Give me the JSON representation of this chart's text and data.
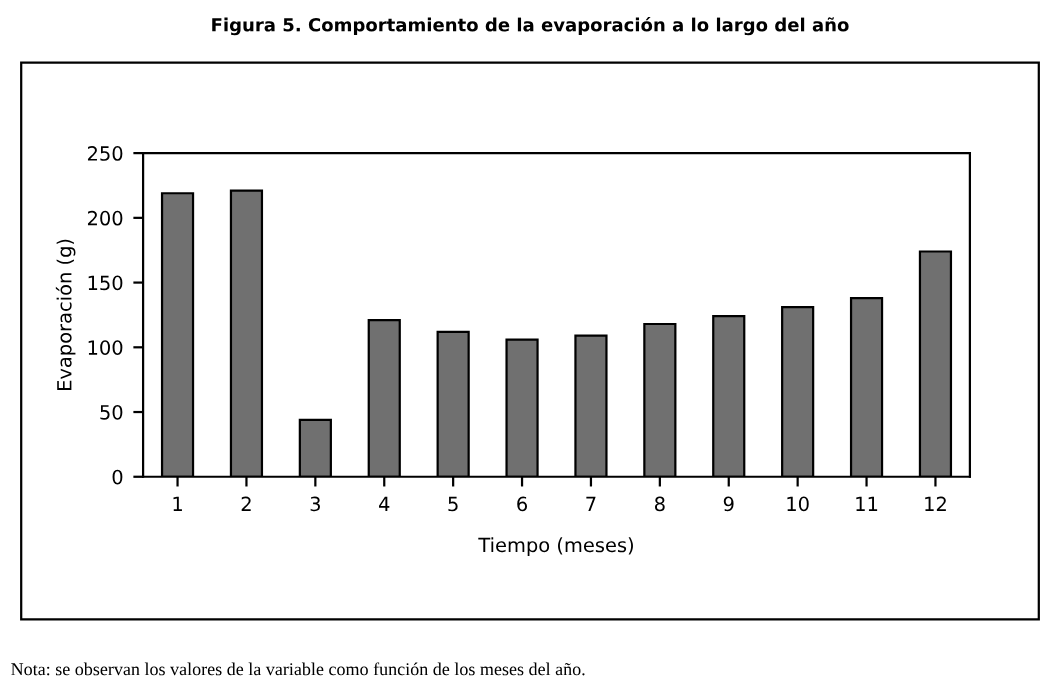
{
  "chart_data": {
    "type": "bar",
    "title": "Figura 5. Comportamiento de la evaporación a lo largo del año",
    "xlabel": "Tiempo (meses)",
    "ylabel": "Evaporación (g)",
    "categories": [
      "1",
      "2",
      "3",
      "4",
      "5",
      "6",
      "7",
      "8",
      "9",
      "10",
      "11",
      "12"
    ],
    "values": [
      219,
      221,
      44,
      121,
      112,
      106,
      109,
      118,
      124,
      131,
      138,
      174
    ],
    "color": "#707070",
    "ylim": [
      0,
      250
    ],
    "yticks": [
      0,
      50,
      100,
      150,
      200,
      250
    ],
    "grid": false,
    "legend": false,
    "annotations": [
      "Nota: se observan los valores de la variable como función de los meses del año."
    ]
  }
}
